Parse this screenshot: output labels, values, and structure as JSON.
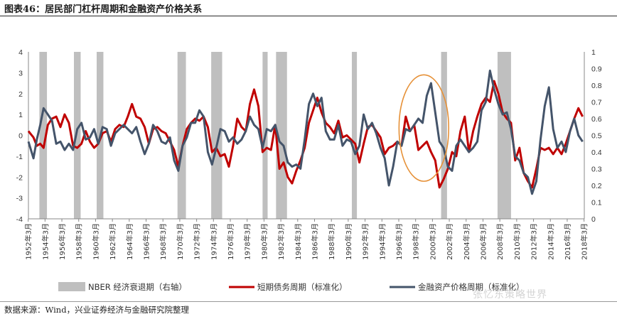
{
  "header": {
    "title": "图表46：居民部门杠杆周期和金融资产价格关系"
  },
  "footer": {
    "source": "数据来源：Wind，兴业证券经济与金融研究院整理",
    "watermark": "张忆东策略世界"
  },
  "chart_data": {
    "type": "line",
    "title": "",
    "xlabel": "",
    "ylabel_left": "",
    "ylabel_right": "",
    "ylim_left": [
      -4,
      4
    ],
    "yticks_left": [
      -4,
      -3,
      -2,
      -1,
      0,
      1,
      2,
      3,
      4
    ],
    "ylim_right": [
      0,
      1
    ],
    "yticks_right": [
      "0",
      "0.1",
      "0.2",
      "0.3",
      "0.4",
      "0.5",
      "0.6",
      "0.7",
      "0.8",
      "0.9",
      "1"
    ],
    "xlim": [
      1952.2,
      2018.2
    ],
    "xtick_labels": [
      "1952年3月",
      "1954年3月",
      "1956年3月",
      "1958年3月",
      "1960年3月",
      "1962年3月",
      "1964年3月",
      "1966年3月",
      "1968年3月",
      "1970年3月",
      "1972年3月",
      "1974年3月",
      "1976年3月",
      "1978年3月",
      "1980年3月",
      "1982年3月",
      "1984年3月",
      "1986年3月",
      "1988年3月",
      "1990年3月",
      "1992年3月",
      "1994年3月",
      "1996年3月",
      "1998年3月",
      "2000年3月",
      "2002年3月",
      "2004年3月",
      "2006年3月",
      "2008年3月",
      "2010年3月",
      "2012年3月",
      "2014年3月",
      "2016年3月",
      "2018年3月"
    ],
    "grid": false,
    "legend_position": "bottom",
    "recessions": [
      [
        1953.5,
        1954.4
      ],
      [
        1957.6,
        1958.4
      ],
      [
        1960.3,
        1961.1
      ],
      [
        1969.9,
        1970.9
      ],
      [
        1973.9,
        1975.2
      ],
      [
        1980.0,
        1980.6
      ],
      [
        1981.6,
        1982.9
      ],
      [
        1990.6,
        1991.2
      ],
      [
        2001.2,
        2001.9
      ],
      [
        2007.9,
        2009.5
      ]
    ],
    "legend": [
      "NBER 经济衰退期（右轴）",
      "短期债务周期（标准化）",
      "金融资产价格周期（标准化）"
    ],
    "colors": {
      "recession": "#bfbfbf",
      "debt": "#c00000",
      "asset": "#44546a",
      "highlight": "#e69138"
    },
    "highlight_ellipse_years": [
      1996.2,
      2002.1
    ],
    "highlight_ellipse_y": [
      -2.2,
      2.9
    ],
    "series": [
      {
        "name": "短期债务周期（标准化）",
        "x": [
          1952.2,
          1952.8,
          1953.2,
          1953.6,
          1954.0,
          1954.5,
          1955.0,
          1955.5,
          1956.0,
          1956.5,
          1957.0,
          1957.5,
          1958.0,
          1958.5,
          1959.0,
          1959.5,
          1960.0,
          1960.5,
          1961.0,
          1961.5,
          1962.0,
          1962.5,
          1963.0,
          1963.5,
          1964.0,
          1964.5,
          1965.0,
          1965.5,
          1966.0,
          1966.5,
          1967.0,
          1967.5,
          1968.0,
          1968.5,
          1969.0,
          1969.5,
          1970.0,
          1970.5,
          1971.0,
          1971.5,
          1972.0,
          1972.5,
          1973.0,
          1973.5,
          1974.0,
          1974.5,
          1975.0,
          1975.5,
          1976.0,
          1976.5,
          1977.0,
          1977.5,
          1978.0,
          1978.5,
          1979.0,
          1979.5,
          1980.0,
          1980.5,
          1981.0,
          1981.5,
          1982.0,
          1982.5,
          1983.0,
          1983.5,
          1984.0,
          1984.5,
          1985.0,
          1985.5,
          1986.0,
          1986.5,
          1987.0,
          1987.5,
          1988.0,
          1988.5,
          1989.0,
          1989.5,
          1990.0,
          1990.5,
          1991.0,
          1991.5,
          1992.0,
          1992.5,
          1993.0,
          1993.5,
          1994.0,
          1994.5,
          1995.0,
          1995.5,
          1996.0,
          1996.5,
          1997.0,
          1997.5,
          1998.0,
          1998.5,
          1999.0,
          1999.5,
          2000.0,
          2000.5,
          2001.0,
          2001.5,
          2002.0,
          2002.5,
          2003.0,
          2003.5,
          2004.0,
          2004.5,
          2005.0,
          2005.5,
          2006.0,
          2006.5,
          2007.0,
          2007.5,
          2008.0,
          2008.5,
          2009.0,
          2009.5,
          2010.0,
          2010.5,
          2011.0,
          2011.5,
          2012.0,
          2012.5,
          2013.0,
          2013.5,
          2014.0,
          2014.5,
          2015.0,
          2015.5,
          2016.0,
          2016.5,
          2017.0,
          2017.5,
          2018.0
        ],
        "values": [
          0.2,
          -0.1,
          -0.5,
          -0.4,
          -0.6,
          0.5,
          0.8,
          0.9,
          0.4,
          1.0,
          0.6,
          -0.5,
          -0.6,
          -0.4,
          0.2,
          -0.3,
          -0.6,
          -0.4,
          0.1,
          0.2,
          -0.3,
          0.3,
          0.5,
          0.4,
          0.9,
          1.5,
          0.9,
          0.8,
          0.4,
          -0.4,
          0.3,
          0.4,
          0.2,
          0.1,
          -0.3,
          -0.7,
          -1.5,
          -0.5,
          0.3,
          0.6,
          0.8,
          0.7,
          0.9,
          0.4,
          -0.8,
          -0.6,
          -1.0,
          -0.9,
          -1.5,
          -0.5,
          0.8,
          0.4,
          0.2,
          1.5,
          2.2,
          1.4,
          -0.8,
          -0.6,
          -0.7,
          0.5,
          -1.6,
          -1.3,
          -2.0,
          -2.3,
          -1.7,
          -1.2,
          -0.6,
          0.6,
          1.2,
          1.8,
          1.1,
          0.6,
          0.4,
          0.1,
          0.7,
          -0.1,
          0.0,
          -0.2,
          -0.4,
          -1.3,
          -0.4,
          0.4,
          0.5,
          0.2,
          -0.1,
          -0.9,
          -0.6,
          -0.5,
          -0.3,
          -0.5,
          0.9,
          0.2,
          0.5,
          -0.7,
          -0.5,
          -0.3,
          -0.8,
          -1.2,
          -2.5,
          -2.1,
          -1.6,
          -0.8,
          -1.0,
          0.2,
          0.9,
          -0.8,
          0.2,
          0.9,
          1.5,
          1.8,
          1.6,
          2.6,
          2.0,
          1.1,
          0.8,
          0.6,
          -1.2,
          -0.6,
          -1.8,
          -2.2,
          -2.5,
          -1.6,
          -0.6,
          -0.7,
          -0.6,
          -0.9,
          -0.6,
          -0.9,
          -0.4,
          0.2,
          0.8,
          1.3,
          0.9
        ]
      },
      {
        "name": "金融资产价格周期（标准化）",
        "x": [
          1952.2,
          1952.8,
          1953.2,
          1953.6,
          1954.0,
          1954.5,
          1955.0,
          1955.5,
          1956.0,
          1956.5,
          1957.0,
          1957.5,
          1958.0,
          1958.5,
          1959.0,
          1959.5,
          1960.0,
          1960.5,
          1961.0,
          1961.5,
          1962.0,
          1962.5,
          1963.0,
          1963.5,
          1964.0,
          1964.5,
          1965.0,
          1965.5,
          1966.0,
          1966.5,
          1967.0,
          1967.5,
          1968.0,
          1968.5,
          1969.0,
          1969.5,
          1970.0,
          1970.5,
          1971.0,
          1971.5,
          1972.0,
          1972.5,
          1973.0,
          1973.5,
          1974.0,
          1974.5,
          1975.0,
          1975.5,
          1976.0,
          1976.5,
          1977.0,
          1977.5,
          1978.0,
          1978.5,
          1979.0,
          1979.5,
          1980.0,
          1980.5,
          1981.0,
          1981.5,
          1982.0,
          1982.5,
          1983.0,
          1983.5,
          1984.0,
          1984.5,
          1985.0,
          1985.5,
          1986.0,
          1986.5,
          1987.0,
          1987.5,
          1988.0,
          1988.5,
          1989.0,
          1989.5,
          1990.0,
          1990.5,
          1991.0,
          1991.5,
          1992.0,
          1992.5,
          1993.0,
          1993.5,
          1994.0,
          1994.5,
          1995.0,
          1995.5,
          1996.0,
          1996.5,
          1997.0,
          1997.5,
          1998.0,
          1998.5,
          1999.0,
          1999.5,
          2000.0,
          2000.5,
          2001.0,
          2001.5,
          2002.0,
          2002.5,
          2003.0,
          2003.5,
          2004.0,
          2004.5,
          2005.0,
          2005.5,
          2006.0,
          2006.5,
          2007.0,
          2007.5,
          2008.0,
          2008.5,
          2009.0,
          2009.5,
          2010.0,
          2010.5,
          2011.0,
          2011.5,
          2012.0,
          2012.5,
          2013.0,
          2013.5,
          2014.0,
          2014.5,
          2015.0,
          2015.5,
          2016.0,
          2016.5,
          2017.0,
          2017.5,
          2018.0
        ],
        "values": [
          -0.3,
          -1.1,
          -0.2,
          0.5,
          1.3,
          1.0,
          0.7,
          -0.4,
          -0.3,
          -0.7,
          -0.4,
          -0.7,
          0.3,
          0.6,
          -0.2,
          -0.1,
          0.3,
          -0.4,
          0.4,
          0.3,
          -0.5,
          0.1,
          0.3,
          0.5,
          0.3,
          0.1,
          0.4,
          -0.3,
          -0.9,
          -0.4,
          0.5,
          0.2,
          -0.3,
          -0.4,
          -0.1,
          -1.2,
          -1.7,
          -0.5,
          -0.1,
          0.6,
          0.6,
          1.2,
          0.9,
          -0.8,
          -1.4,
          -0.6,
          0.3,
          0.2,
          -0.3,
          -0.1,
          -0.4,
          -0.2,
          0.2,
          0.9,
          0.5,
          0.3,
          -0.6,
          0.3,
          0.2,
          0.5,
          -0.3,
          -0.5,
          -1.3,
          -1.5,
          -1.4,
          -1.6,
          -0.2,
          1.5,
          2.0,
          1.4,
          1.8,
          0.2,
          -0.2,
          -0.2,
          0.5,
          -0.5,
          -0.2,
          -0.3,
          -0.9,
          -0.5,
          1.0,
          0.3,
          0.6,
          0.1,
          -0.6,
          -1.1,
          -2.4,
          -1.5,
          -0.3,
          -0.5,
          0.3,
          0.2,
          0.5,
          0.8,
          0.6,
          1.9,
          2.5,
          1.1,
          -0.3,
          -0.6,
          -1.5,
          -1.7,
          -0.5,
          -0.2,
          -0.5,
          -0.8,
          -0.6,
          -0.3,
          1.2,
          1.6,
          3.1,
          2.2,
          1.5,
          1.0,
          1.1,
          0.3,
          -1.0,
          -1.2,
          -1.8,
          -2.0,
          -2.8,
          -2.2,
          -0.2,
          1.4,
          2.3,
          0.3,
          -0.6,
          -0.3,
          -0.8,
          0.2,
          0.8,
          0.0,
          -0.3
        ]
      }
    ]
  }
}
